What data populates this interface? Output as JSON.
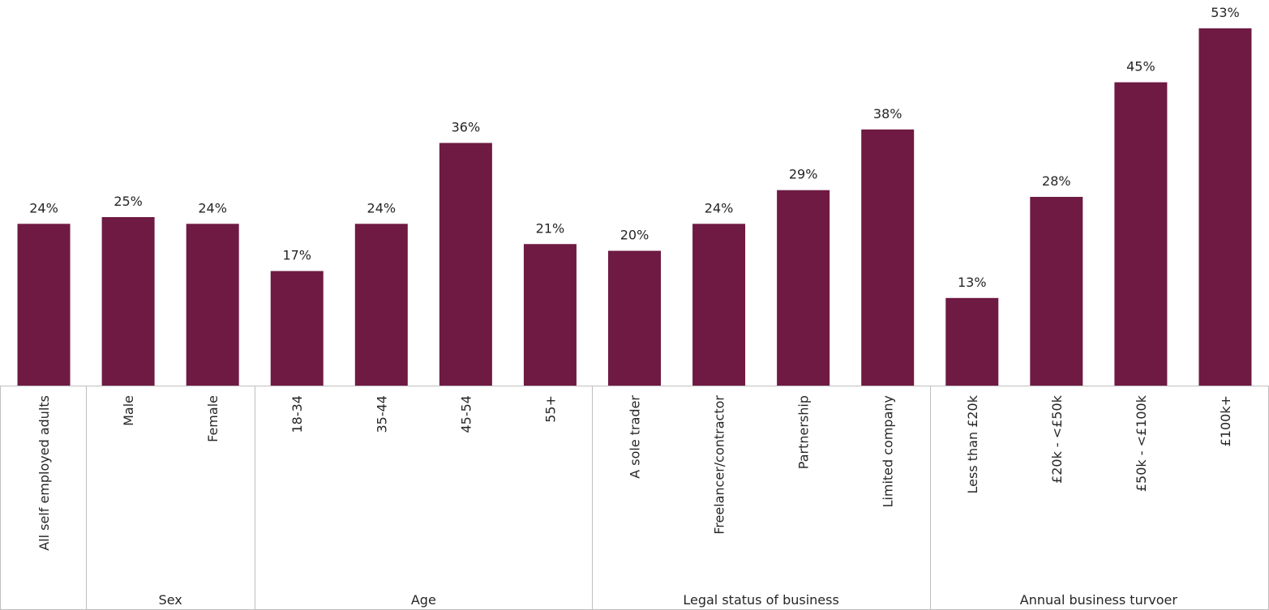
{
  "chart_data": {
    "type": "bar",
    "title": "",
    "xlabel": "",
    "ylabel": "",
    "ylim": [
      0,
      53
    ],
    "grid": false,
    "legend": "none",
    "bar_color": "#6e1a43",
    "value_suffix": "%",
    "categories": [
      "All self employed adults",
      "Male",
      "Female",
      "18-34",
      "35-44",
      "45-54",
      "55+",
      "A sole trader",
      "Freelancer/contractor",
      "Partnership",
      "Limited company",
      "Less than £20k",
      "£20k - <£50k",
      "£50k - <£100k",
      "£100k+"
    ],
    "values": [
      24,
      25,
      24,
      17,
      24,
      36,
      21,
      20,
      24,
      29,
      38,
      13,
      28,
      45,
      53
    ],
    "groups": [
      {
        "label": "",
        "count": 1
      },
      {
        "label": "Sex",
        "count": 2
      },
      {
        "label": "Age",
        "count": 4
      },
      {
        "label": "Legal status of business",
        "count": 4
      },
      {
        "label": "Annual business turvoer",
        "count": 4
      }
    ]
  }
}
